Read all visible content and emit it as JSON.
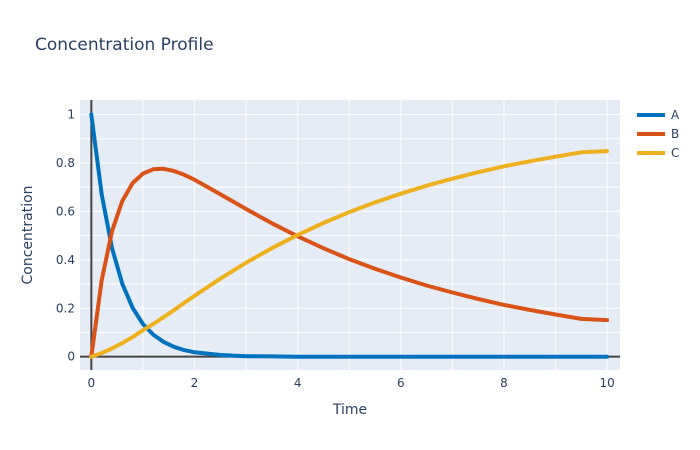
{
  "chart_data": {
    "type": "line",
    "title": "Concentration Profile",
    "xlabel": "Time",
    "ylabel": "Concentration",
    "xlim": [
      -0.22,
      10.25
    ],
    "ylim": [
      -0.055,
      1.06
    ],
    "xticks": [
      0,
      2,
      4,
      6,
      8,
      10
    ],
    "xtick_labels": [
      "0",
      "2",
      "4",
      "6",
      "8",
      "10"
    ],
    "yticks": [
      0,
      0.2,
      0.4,
      0.6,
      0.8,
      1
    ],
    "ytick_labels": [
      "0",
      "0.2",
      "0.4",
      "0.6",
      "0.8",
      "1"
    ],
    "grid": true,
    "legend_position": "top-right",
    "colors": {
      "A": "#0072bd",
      "B": "#d95319",
      "C": "#edb120",
      "plot_background": "#e5ecf6",
      "grid": "#ffffff",
      "zero_line": "#444444"
    },
    "x": [
      0,
      0.2,
      0.4,
      0.6,
      0.8,
      1,
      1.2,
      1.4,
      1.6,
      1.8,
      2,
      2.5,
      3,
      3.5,
      4,
      4.5,
      5,
      5.5,
      6,
      6.5,
      7,
      7.5,
      8,
      8.5,
      9,
      9.5,
      10
    ],
    "series": [
      {
        "name": "A",
        "values": [
          1,
          0.67,
          0.449,
          0.301,
          0.202,
          0.135,
          0.091,
          0.061,
          0.041,
          0.027,
          0.018,
          0.007,
          0.002,
          0.001,
          0,
          0,
          0,
          0,
          0,
          0,
          0,
          0,
          0,
          0,
          0,
          0,
          0
        ]
      },
      {
        "name": "B",
        "values": [
          0,
          0.316,
          0.518,
          0.643,
          0.717,
          0.756,
          0.774,
          0.776,
          0.767,
          0.751,
          0.731,
          0.671,
          0.61,
          0.551,
          0.497,
          0.448,
          0.403,
          0.363,
          0.327,
          0.294,
          0.265,
          0.238,
          0.214,
          0.193,
          0.174,
          0.156,
          0.151
        ]
      },
      {
        "name": "C",
        "values": [
          0,
          0.015,
          0.034,
          0.056,
          0.081,
          0.109,
          0.135,
          0.163,
          0.192,
          0.222,
          0.251,
          0.322,
          0.388,
          0.448,
          0.503,
          0.552,
          0.597,
          0.637,
          0.673,
          0.706,
          0.735,
          0.762,
          0.786,
          0.807,
          0.826,
          0.844,
          0.849
        ]
      }
    ]
  }
}
